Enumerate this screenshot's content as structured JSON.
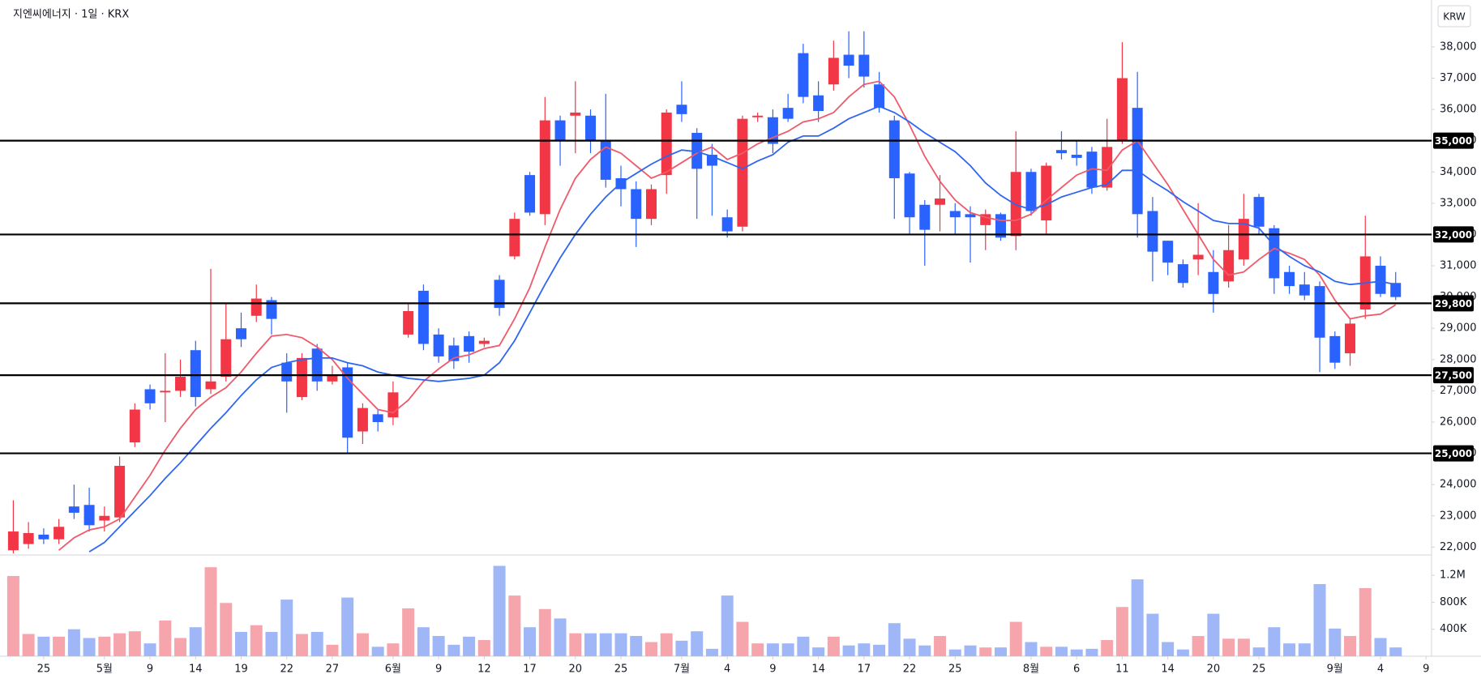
{
  "chart_data": {
    "type": "candlestick",
    "title": "지엔씨에너지 · 1일 · KRX",
    "currency": "KRW",
    "colors": {
      "up": "#f23645",
      "down": "#2962ff",
      "volume_up": "#f7a5ad",
      "volume_down": "#9fb6f7"
    },
    "xticks": [
      {
        "value": 2,
        "label": "25"
      },
      {
        "value": 6,
        "label": "5월"
      },
      {
        "value": 9,
        "label": "9"
      },
      {
        "value": 12,
        "label": "14"
      },
      {
        "value": 15,
        "label": "19"
      },
      {
        "value": 18,
        "label": "22"
      },
      {
        "value": 21,
        "label": "27"
      },
      {
        "value": 25,
        "label": "6월"
      },
      {
        "value": 28,
        "label": "9"
      },
      {
        "value": 31,
        "label": "12"
      },
      {
        "value": 34,
        "label": "17"
      },
      {
        "value": 37,
        "label": "20"
      },
      {
        "value": 40,
        "label": "25"
      },
      {
        "value": 44,
        "label": "7월"
      },
      {
        "value": 47,
        "label": "4"
      },
      {
        "value": 50,
        "label": "9"
      },
      {
        "value": 53,
        "label": "14"
      },
      {
        "value": 56,
        "label": "17"
      },
      {
        "value": 59,
        "label": "22"
      },
      {
        "value": 62,
        "label": "25"
      },
      {
        "value": 67,
        "label": "8월"
      },
      {
        "value": 70,
        "label": "6"
      },
      {
        "value": 73,
        "label": "11"
      },
      {
        "value": 76,
        "label": "14"
      },
      {
        "value": 79,
        "label": "20"
      },
      {
        "value": 82,
        "label": "25"
      },
      {
        "value": 87,
        "label": "9월"
      },
      {
        "value": 90,
        "label": "4"
      },
      {
        "value": 93,
        "label": "9"
      }
    ],
    "open": [
      21900,
      22100,
      22400,
      22250,
      23300,
      23350,
      22850,
      22950,
      25350,
      27050,
      26950,
      27000,
      28300,
      27050,
      27450,
      29000,
      29400,
      29900,
      27900,
      26800,
      28350,
      27300,
      27750,
      25700,
      26250,
      26150,
      28800,
      30200,
      28800,
      28450,
      28750,
      28500,
      30550,
      31300,
      33900,
      32650,
      35650,
      35800,
      35800,
      35000,
      33800,
      33450,
      32500,
      33900,
      36150,
      35250,
      34550,
      32550,
      32250,
      35750,
      35750,
      36050,
      37800,
      36450,
      36800,
      37750,
      37750,
      36800,
      35650,
      33950,
      32950,
      32950,
      32750,
      32650,
      32300,
      32650,
      31950,
      34000,
      32450,
      34700,
      34550,
      34650,
      33500,
      35000,
      36050,
      32750,
      31800,
      31050,
      31200,
      30800,
      30500,
      31200,
      33200,
      32200,
      30800,
      30400,
      30350,
      28750,
      28200,
      29600,
      31000,
      30450
    ],
    "high": [
      23500,
      22800,
      22600,
      22900,
      24000,
      23900,
      23300,
      24900,
      26600,
      27200,
      28200,
      28000,
      28600,
      30900,
      29800,
      29500,
      30400,
      30000,
      28200,
      28200,
      28500,
      27800,
      27900,
      26600,
      26400,
      27300,
      29800,
      30400,
      29000,
      28700,
      28900,
      28700,
      30700,
      32700,
      34000,
      36400,
      35800,
      36900,
      36000,
      36500,
      34200,
      33700,
      33600,
      36000,
      36900,
      35400,
      34900,
      32800,
      35800,
      35900,
      36000,
      36500,
      38100,
      36900,
      38200,
      38500,
      38500,
      37200,
      35800,
      34000,
      33100,
      33900,
      33000,
      32900,
      32800,
      32700,
      35300,
      34100,
      34300,
      35300,
      35000,
      34800,
      35700,
      38150,
      37200,
      33200,
      31800,
      31200,
      33000,
      31500,
      32300,
      33300,
      33300,
      32300,
      31000,
      30800,
      30500,
      28900,
      29300,
      32600,
      31300,
      30800
    ],
    "low": [
      21800,
      21950,
      22100,
      22100,
      22900,
      22500,
      22500,
      22800,
      25200,
      26400,
      26000,
      26800,
      26500,
      26900,
      27300,
      28400,
      29200,
      28800,
      26300,
      26700,
      27000,
      27200,
      25000,
      25300,
      25700,
      25900,
      28700,
      28300,
      27900,
      27700,
      27900,
      28400,
      29400,
      31200,
      32600,
      32300,
      34200,
      34600,
      34600,
      33500,
      32900,
      31600,
      32300,
      33300,
      35600,
      32500,
      32600,
      31900,
      32100,
      35600,
      34600,
      35600,
      36200,
      35600,
      36600,
      37000,
      36700,
      35900,
      32500,
      32000,
      31000,
      32100,
      32000,
      31100,
      31500,
      31800,
      31500,
      32600,
      32000,
      34400,
      34200,
      33300,
      33400,
      34900,
      31900,
      30500,
      30700,
      30300,
      30700,
      29500,
      30300,
      31000,
      32000,
      30100,
      30100,
      29900,
      27600,
      27700,
      27800,
      29300,
      30000,
      29900
    ],
    "close": [
      22500,
      22450,
      22250,
      22650,
      23100,
      22700,
      23000,
      24600,
      26400,
      26600,
      27000,
      27450,
      26800,
      27300,
      28650,
      28650,
      29950,
      29300,
      27300,
      28050,
      27300,
      27500,
      25500,
      26450,
      26000,
      26950,
      29550,
      28500,
      28100,
      27950,
      28250,
      28600,
      29650,
      32500,
      32700,
      35650,
      35000,
      35900,
      35000,
      33750,
      33450,
      32500,
      33450,
      35900,
      35850,
      34100,
      34200,
      32100,
      35700,
      35800,
      34900,
      35700,
      36400,
      35950,
      37650,
      37400,
      37050,
      36050,
      33800,
      32550,
      32150,
      33150,
      32550,
      32550,
      32650,
      31900,
      34000,
      32750,
      34200,
      34600,
      34450,
      33500,
      34800,
      37000,
      32650,
      31450,
      31100,
      30450,
      31350,
      30100,
      31500,
      32500,
      32250,
      30600,
      30350,
      30050,
      28700,
      27900,
      29150,
      31300,
      30100,
      30000
    ],
    "series": [
      {
        "color": "#ef5a6a",
        "values": [
          null,
          null,
          null,
          21900,
          22300,
          22550,
          22650,
          22900,
          23600,
          24300,
          25100,
          25800,
          26400,
          26800,
          27100,
          27600,
          28200,
          28750,
          28800,
          28700,
          28400,
          28000,
          27400,
          26900,
          26400,
          26300,
          26700,
          27300,
          27700,
          28050,
          28150,
          28350,
          28450,
          29300,
          30300,
          31600,
          32800,
          33800,
          34400,
          34800,
          34600,
          34200,
          33800,
          34000,
          34300,
          34600,
          34800,
          34400,
          34600,
          34900,
          35100,
          35300,
          35600,
          35700,
          35900,
          36400,
          36800,
          36900,
          36400,
          35500,
          34500,
          33700,
          33100,
          32700,
          32550,
          32450,
          32450,
          32650,
          33100,
          33500,
          33900,
          34100,
          34050,
          34700,
          35000,
          34300,
          33600,
          32800,
          32000,
          31200,
          30700,
          30800,
          31200,
          31550,
          31400,
          31200,
          30700,
          29900,
          29300,
          29400,
          29450,
          29750
        ]
      },
      {
        "color": "#2f66f0",
        "values": [
          null,
          null,
          null,
          null,
          null,
          21850,
          22150,
          22650,
          23150,
          23650,
          24200,
          24700,
          25250,
          25800,
          26300,
          26850,
          27350,
          27750,
          27900,
          28000,
          28050,
          28050,
          27900,
          27800,
          27600,
          27500,
          27400,
          27350,
          27300,
          27350,
          27400,
          27500,
          27900,
          28600,
          29500,
          30400,
          31250,
          32000,
          32650,
          33200,
          33650,
          33950,
          34250,
          34500,
          34700,
          34650,
          34500,
          34300,
          34100,
          34350,
          34550,
          34950,
          35150,
          35150,
          35400,
          35700,
          35900,
          36100,
          35900,
          35600,
          35250,
          34950,
          34650,
          34200,
          33650,
          33250,
          32950,
          32800,
          32950,
          33200,
          33350,
          33500,
          33600,
          34050,
          34050,
          33700,
          33400,
          33050,
          32750,
          32450,
          32350,
          32350,
          32200,
          31650,
          31300,
          31000,
          30800,
          30500,
          30400,
          30450,
          30500,
          30400
        ]
      }
    ],
    "ylim": [
      21750,
      39500
    ],
    "yticks": [
      {
        "value": 22000,
        "label": "22,000"
      },
      {
        "value": 23000,
        "label": "23,000"
      },
      {
        "value": 24000,
        "label": "24,000"
      },
      {
        "value": 25000,
        "label": "25,000"
      },
      {
        "value": 26000,
        "label": "26,000"
      },
      {
        "value": 27000,
        "label": "27,000"
      },
      {
        "value": 28000,
        "label": "28,000"
      },
      {
        "value": 29000,
        "label": "29,000"
      },
      {
        "value": 30000,
        "label": "30,000"
      },
      {
        "value": 31000,
        "label": "31,000"
      },
      {
        "value": 32000,
        "label": "32,000"
      },
      {
        "value": 33000,
        "label": "33,000"
      },
      {
        "value": 34000,
        "label": "34,000"
      },
      {
        "value": 35000,
        "label": "35,000"
      },
      {
        "value": 36000,
        "label": "36,000"
      },
      {
        "value": 37000,
        "label": "37,000"
      },
      {
        "value": 38000,
        "label": "38,000"
      }
    ],
    "hlines": [
      {
        "value": 35000,
        "label": "35,000"
      },
      {
        "value": 32000,
        "label": "32,000"
      },
      {
        "value": 29800,
        "label": "29,800"
      },
      {
        "value": 27500,
        "label": "27,500"
      },
      {
        "value": 25000,
        "label": "25,000"
      }
    ],
    "volume": {
      "values": [
        1190000,
        330000,
        290000,
        290000,
        400000,
        270000,
        290000,
        340000,
        370000,
        190000,
        530000,
        270000,
        430000,
        1320000,
        790000,
        360000,
        460000,
        360000,
        840000,
        330000,
        360000,
        170000,
        870000,
        340000,
        140000,
        190000,
        710000,
        430000,
        300000,
        170000,
        290000,
        240000,
        1340000,
        900000,
        430000,
        700000,
        560000,
        340000,
        340000,
        340000,
        340000,
        300000,
        210000,
        340000,
        230000,
        370000,
        110000,
        900000,
        510000,
        190000,
        190000,
        190000,
        290000,
        130000,
        290000,
        160000,
        190000,
        170000,
        490000,
        260000,
        160000,
        300000,
        100000,
        160000,
        130000,
        130000,
        510000,
        210000,
        140000,
        140000,
        100000,
        110000,
        240000,
        730000,
        1140000,
        630000,
        210000,
        100000,
        300000,
        630000,
        260000,
        260000,
        130000,
        430000,
        190000,
        190000,
        1070000,
        410000,
        300000,
        1010000,
        270000,
        130000
      ],
      "ylim": [
        0,
        1490000
      ],
      "yticks": [
        {
          "value": 400000,
          "label": "400K"
        },
        {
          "value": 800000,
          "label": "800K"
        },
        {
          "value": 1200000,
          "label": "1.2M"
        }
      ]
    }
  }
}
